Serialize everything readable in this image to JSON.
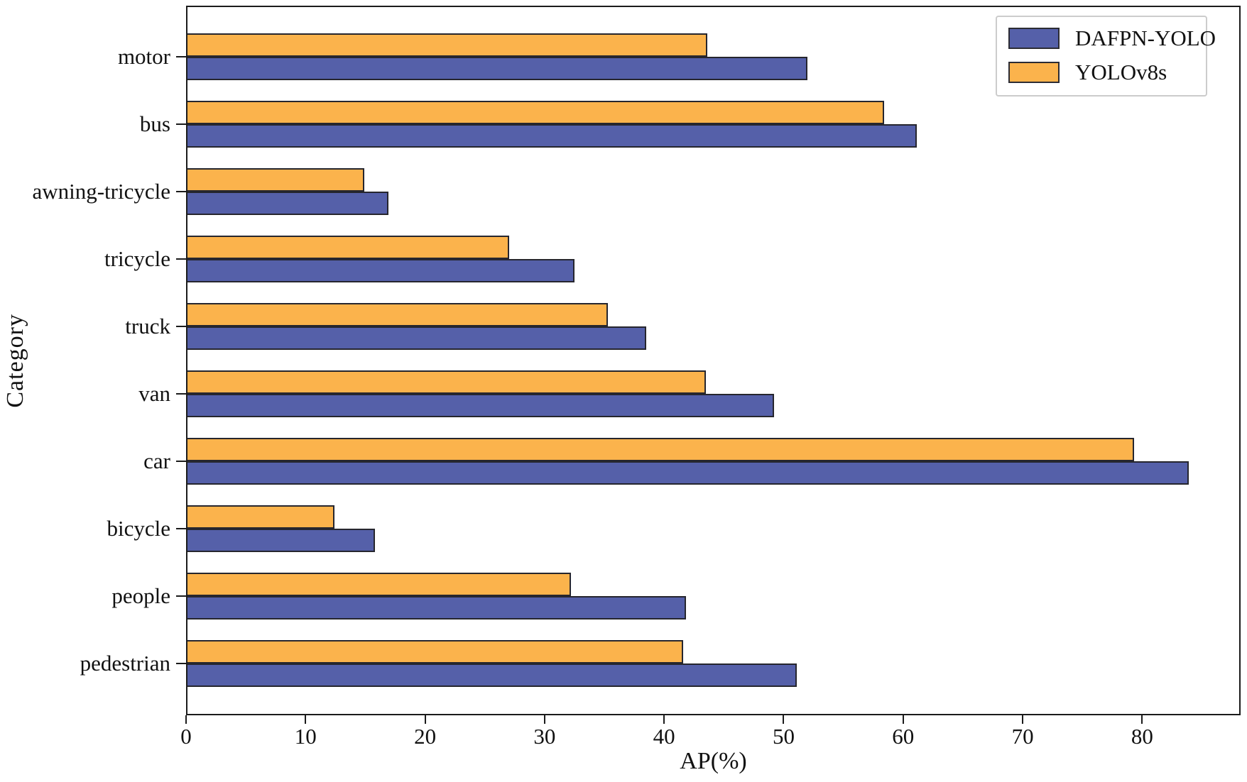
{
  "chart_data": {
    "type": "bar",
    "orientation": "horizontal",
    "title": "",
    "xlabel": "AP(%)",
    "ylabel": "Category",
    "xlim": [
      0,
      88
    ],
    "xticks": [
      0,
      10,
      20,
      30,
      40,
      50,
      60,
      70,
      80
    ],
    "grid": false,
    "background_color": "#ffffff",
    "categories_top_to_bottom": [
      "motor",
      "bus",
      "awning-tricycle",
      "tricycle",
      "truck",
      "van",
      "car",
      "bicycle",
      "people",
      "pedestrian"
    ],
    "series": [
      {
        "name": "DAFPN-YOLO",
        "color": "#5560a9",
        "edge_color": "#26262e",
        "values": [
          51.9,
          61.0,
          16.8,
          32.4,
          38.4,
          49.1,
          83.8,
          15.7,
          41.7,
          51.0
        ]
      },
      {
        "name": "YOLOv8s",
        "color": "#fbb34c",
        "edge_color": "#26262e",
        "values": [
          43.5,
          58.3,
          14.8,
          26.9,
          35.2,
          43.4,
          79.2,
          12.3,
          32.1,
          41.5
        ]
      }
    ],
    "bar_order_in_group_top_to_bottom": [
      "YOLOv8s",
      "DAFPN-YOLO"
    ],
    "legend": {
      "position": "upper-right",
      "entries": [
        "DAFPN-YOLO",
        "YOLOv8s"
      ]
    }
  }
}
